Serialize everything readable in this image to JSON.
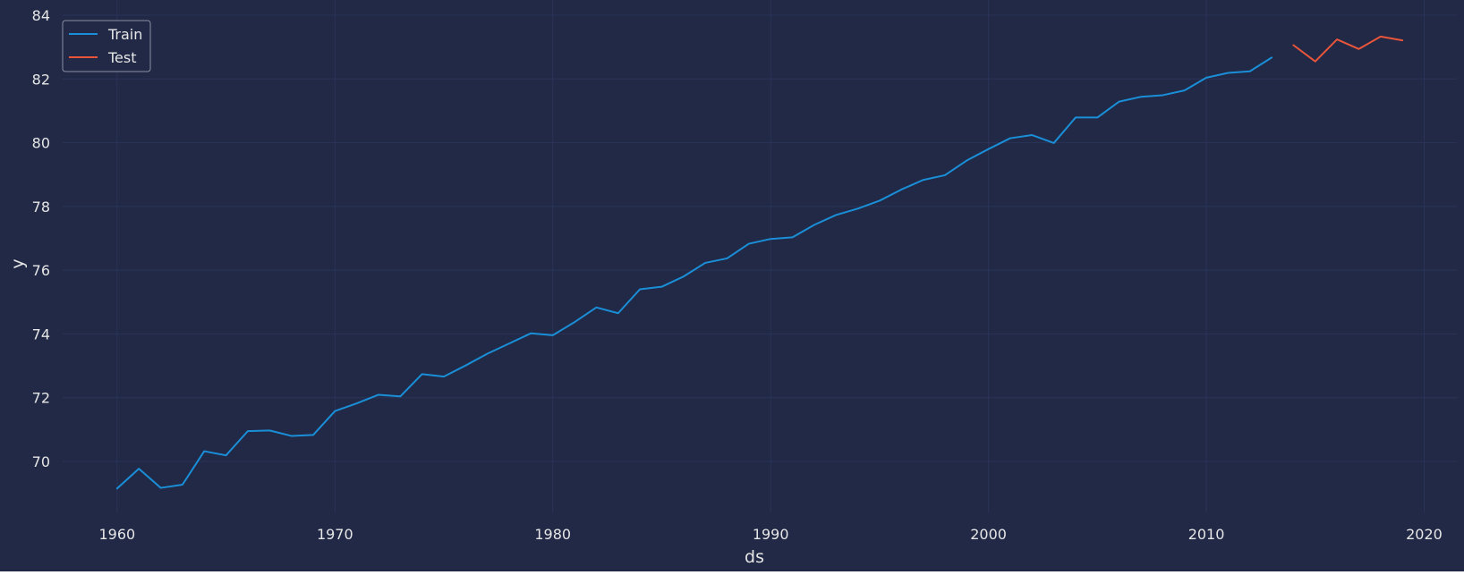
{
  "chart_data": {
    "type": "line",
    "title": "",
    "xlabel": "ds",
    "ylabel": "y",
    "xlim": [
      1957.5,
      2021.5
    ],
    "ylim": [
      68.4,
      84.0
    ],
    "grid": true,
    "legend_position": "top-left",
    "x_ticks": [
      1960,
      1970,
      1980,
      1990,
      2000,
      2010,
      2020
    ],
    "y_ticks": [
      70,
      72,
      74,
      76,
      78,
      80,
      82,
      84
    ],
    "series": [
      {
        "name": "Train",
        "color": "#1a8fd8",
        "x": [
          1960,
          1961,
          1962,
          1963,
          1964,
          1965,
          1966,
          1967,
          1968,
          1969,
          1970,
          1971,
          1972,
          1973,
          1974,
          1975,
          1976,
          1977,
          1978,
          1979,
          1980,
          1981,
          1982,
          1983,
          1984,
          1985,
          1986,
          1987,
          1988,
          1989,
          1990,
          1991,
          1992,
          1993,
          1994,
          1995,
          1996,
          1997,
          1998,
          1999,
          2000,
          2001,
          2002,
          2003,
          2004,
          2005,
          2006,
          2007,
          2008,
          2009,
          2010,
          2011,
          2012,
          2013
        ],
        "values": [
          69.15,
          69.77,
          69.17,
          69.27,
          70.32,
          70.19,
          70.95,
          70.97,
          70.8,
          70.83,
          71.58,
          71.82,
          72.09,
          72.04,
          72.74,
          72.66,
          73.01,
          73.38,
          73.7,
          74.02,
          73.96,
          74.37,
          74.83,
          74.65,
          75.4,
          75.48,
          75.8,
          76.23,
          76.37,
          76.83,
          76.98,
          77.03,
          77.42,
          77.73,
          77.93,
          78.18,
          78.53,
          78.83,
          78.98,
          79.44,
          79.8,
          80.14,
          80.24,
          79.99,
          80.79,
          80.79,
          81.29,
          81.44,
          81.49,
          81.64,
          82.04,
          82.19,
          82.24,
          82.67
        ]
      },
      {
        "name": "Test",
        "color": "#e8553b",
        "x": [
          2014,
          2015,
          2016,
          2017,
          2018,
          2019
        ],
        "values": [
          83.06,
          82.55,
          83.24,
          82.94,
          83.33,
          83.21
        ]
      }
    ]
  },
  "style": {
    "background": "#212946",
    "grid_color": "#2a3459",
    "text_color": "#e6e6e6",
    "legend_border": "#8a8fa3"
  }
}
